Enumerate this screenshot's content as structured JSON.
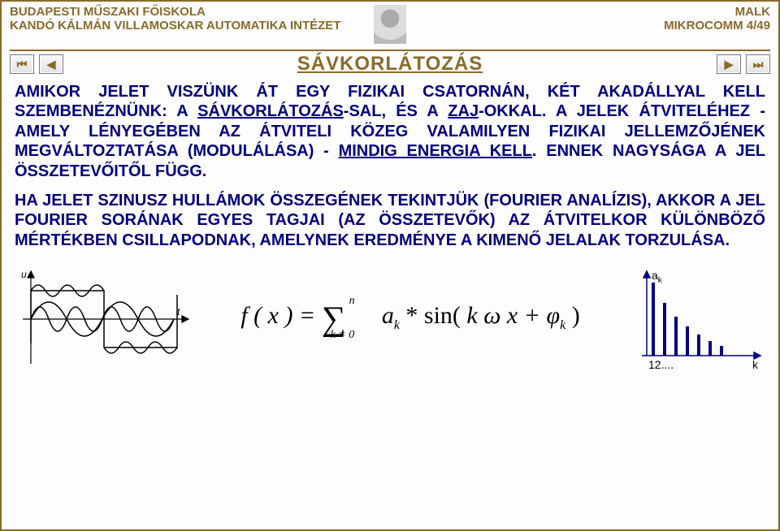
{
  "header": {
    "left_line1": "BUDAPESTI MŰSZAKI FŐISKOLA",
    "left_line2": "KANDÓ KÁLMÁN VILLAMOSKAR AUTOMATIKA INTÉZET",
    "right_line1": "MALK",
    "right_line2": "MIKROCOMM 4/49"
  },
  "nav": {
    "first": "⏮",
    "prev": "◀",
    "next": "▶",
    "last": "⏭"
  },
  "title": "SÁVKORLÁTOZÁS",
  "para1_a": "AMIKOR JELET VISZÜNK ÁT EGY FIZIKAI CSATORNÁN, KÉT AKADÁLLYAL KELL SZEMBENÉZNÜNK: A ",
  "para1_u1": "SÁVKORLÁTOZÁS",
  "para1_b": "-SAL, ÉS A ",
  "para1_u2": "ZAJ",
  "para1_c": "-OKKAL. A JELEK ÁTVITELÉHEZ - AMELY LÉNYEGÉBEN AZ ÁTVITELI KÖZEG VALAMILYEN FIZIKAI JELLEMZŐJÉNEK MEGVÁLTOZTATÁSA (MODULÁLÁSA) - ",
  "para1_u3": "MINDIG ENERGIA KELL",
  "para1_d": ". ENNEK NAGYSÁGA A JEL ÖSSZETEVŐITŐL FÜGG.",
  "para2": "HA JELET SZINUSZ HULLÁMOK ÖSSZEGÉNEK TEKINTJÜK (FOURIER ANALÍZIS), AKKOR A JEL FOURIER SORÁNAK EGYES TAGJAI (AZ ÖSSZETEVŐK) AZ ÁTVITELKOR KÜLÖNBÖZŐ MÉRTÉKBEN CSILLAPODNAK, AMELYNEK EREDMÉNYE A KIMENŐ JELALAK TORZULÁSA.",
  "formula": {
    "lhs": "f ( x ) =",
    "sumTop": "n",
    "sumBot": "k = 0",
    "rhs_a": "a",
    "rhs_a_sub": "k",
    "star": " * ",
    "sin": "sin(",
    "kwx": " k ω x + φ",
    "phi_sub": "k",
    "close": " )"
  },
  "spectrum": {
    "ylabel": "a",
    "ylabel_sub": "k",
    "xlabel": "k",
    "ticks": "12....",
    "bars": [
      90,
      65,
      48,
      36,
      26,
      18,
      12
    ],
    "bar_color": "#000080"
  },
  "wave": {
    "axis_u": "u",
    "axis_t": "t",
    "stroke": "#000000"
  }
}
